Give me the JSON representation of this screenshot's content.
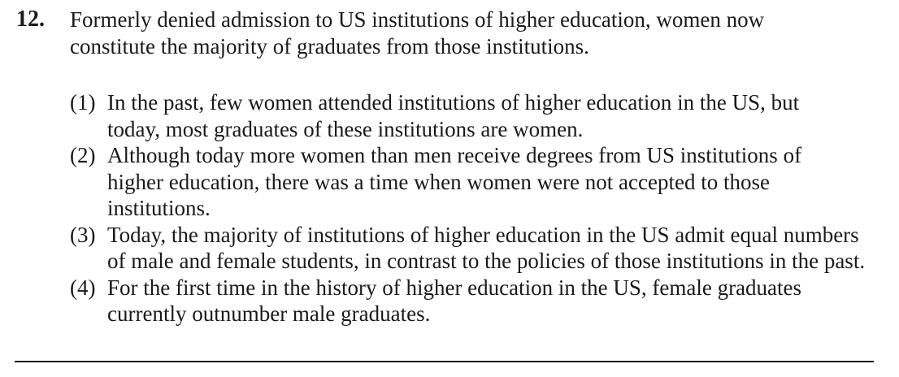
{
  "question": {
    "number": "12.",
    "stem": "Formerly denied admission to US institutions of higher education, women now constitute the majority of graduates from those institutions.",
    "options": [
      {
        "label": "(1)",
        "text": "In the past, few women attended institutions of higher education in the US, but today, most graduates of these institutions are women."
      },
      {
        "label": "(2)",
        "text": "Although today more women than men receive degrees from US institutions of higher education, there was a time when women were not accepted to those institutions."
      },
      {
        "label": "(3)",
        "text": "Today, the majority of institutions of higher education in the US admit equal numbers of male and female students, in contrast to the policies of those institutions in the past."
      },
      {
        "label": "(4)",
        "text": "For the first time in the history of higher education in the US, female graduates currently outnumber male graduates."
      }
    ]
  }
}
